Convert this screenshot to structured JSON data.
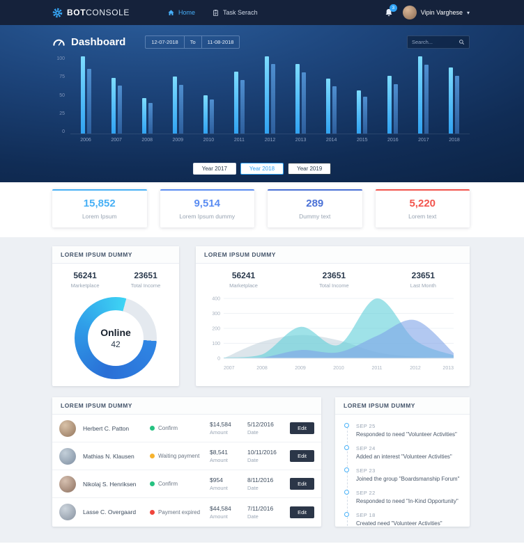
{
  "navbar": {
    "logo_bold": "BOT",
    "logo_light": "CONSOLE",
    "items": [
      {
        "label": "Home"
      },
      {
        "label": "Task Serach"
      }
    ],
    "notification_count": "3",
    "user_name": "Vipin Varghese",
    "caret": "▾"
  },
  "hero": {
    "title": "Dashboard",
    "date_from": "12-07-2018",
    "date_to_label": "To",
    "date_to": "11-08-2018",
    "search_placeholder": "Search...",
    "year_buttons": [
      {
        "label": "Year 2017"
      },
      {
        "label": "Year 2018"
      },
      {
        "label": "Year 2019"
      }
    ]
  },
  "stats_cards": [
    {
      "value": "15,852",
      "label": "Lorem Ipsum",
      "color": "#47b0f5"
    },
    {
      "value": "9,514",
      "label": "Lorem Ipsum dummy",
      "color": "#5b8df2"
    },
    {
      "value": "289",
      "label": "Dummy text",
      "color": "#4a71d6"
    },
    {
      "value": "5,220",
      "label": "Lorem text",
      "color": "#f2544d"
    }
  ],
  "donut_card": {
    "title": "LOREM IPSUM DUMMY",
    "stats": [
      {
        "value": "56241",
        "label": "Marketplace"
      },
      {
        "value": "23651",
        "label": "Total Income"
      }
    ]
  },
  "area_card": {
    "title": "LOREM IPSUM DUMMY",
    "stats": [
      {
        "value": "56241",
        "label": "Marketplace"
      },
      {
        "value": "23651",
        "label": "Total Income"
      },
      {
        "value": "23651",
        "label": "Last Month"
      }
    ]
  },
  "transactions": {
    "title": "LOREM IPSUM DUMMY",
    "amount_label": "Amount",
    "date_label": "Date",
    "rows": [
      {
        "name": "Herbert C. Patton",
        "status": "Confirm",
        "status_color": "#26c281",
        "amount": "$14,584",
        "date": "5/12/2016",
        "action": "Edit"
      },
      {
        "name": "Mathias N. Klausen",
        "status": "Waiting payment",
        "status_color": "#f7b32d",
        "amount": "$8,541",
        "date": "10/11/2016",
        "action": "Edit"
      },
      {
        "name": "Nikolaj S. Henriksen",
        "status": "Confirm",
        "status_color": "#26c281",
        "amount": "$954",
        "date": "8/11/2016",
        "action": "Edit"
      },
      {
        "name": "Lasse C. Overgaard",
        "status": "Payment expired",
        "status_color": "#f0453c",
        "amount": "$44,584",
        "date": "7/11/2016",
        "action": "Edit"
      }
    ]
  },
  "timeline": {
    "title": "LOREM IPSUM DUMMY",
    "items": [
      {
        "date": "SEP 25",
        "text": "Responded to need \"Volunteer Activities\""
      },
      {
        "date": "SEP 24",
        "text": "Added an interest \"Volunteer Activities\""
      },
      {
        "date": "SEP 23",
        "text": "Joined the group \"Boardsmanship Forum\""
      },
      {
        "date": "SEP 22",
        "text": "Responded to need \"In-Kind Opportunity\""
      },
      {
        "date": "SEP 18",
        "text": "Created need \"Volunteer Activities\""
      }
    ]
  },
  "chart_data": [
    {
      "id": "hero-bar-chart",
      "type": "bar",
      "title": "",
      "categories": [
        "2006",
        "2007",
        "2008",
        "2009",
        "2010",
        "2011",
        "2012",
        "2013",
        "2014",
        "2015",
        "2016",
        "2017",
        "2018"
      ],
      "series": [
        {
          "name": "series-1",
          "colors": [
            "#7ddcff",
            "#31a3f2"
          ],
          "values": [
            100,
            72,
            46,
            74,
            50,
            80,
            100,
            90,
            71,
            56,
            75,
            100,
            86
          ]
        },
        {
          "name": "series-2",
          "colors": [
            "#4f8fd0",
            "#2e5f9d"
          ],
          "values": [
            84,
            62,
            40,
            63,
            44,
            69,
            90,
            79,
            61,
            48,
            64,
            89,
            75
          ]
        }
      ],
      "ylim": [
        0,
        100
      ],
      "yticks": [
        0,
        25,
        50,
        75,
        100
      ],
      "legend": false,
      "grid": false
    },
    {
      "id": "online-donut",
      "type": "pie",
      "labels": [
        "Online",
        "Remaining"
      ],
      "values": [
        78,
        22
      ],
      "center_title": "Online",
      "center_value": "42",
      "ring_gradient": [
        "#2f86e4",
        "#2a6fd6",
        "#2f9ce8",
        "#3ed4f4"
      ],
      "track_color": "#e4e9ef"
    },
    {
      "id": "income-area-chart",
      "type": "area",
      "x": [
        "2007",
        "2008",
        "2009",
        "2010",
        "2011",
        "2012",
        "2013"
      ],
      "series": [
        {
          "name": "series-1",
          "color": "#c5d3de",
          "values": [
            0,
            110,
            155,
            120,
            40,
            10,
            0
          ]
        },
        {
          "name": "series-2",
          "color": "#5fced8",
          "values": [
            5,
            25,
            210,
            90,
            400,
            120,
            20
          ]
        },
        {
          "name": "series-3",
          "color": "#7fa3e8",
          "values": [
            0,
            5,
            55,
            40,
            150,
            255,
            35
          ]
        }
      ],
      "ylim": [
        0,
        400
      ],
      "yticks": [
        0,
        100,
        200,
        300,
        400
      ],
      "legend": false,
      "grid": true
    }
  ]
}
